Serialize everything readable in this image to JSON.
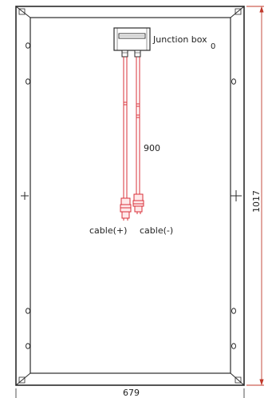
{
  "diagram": {
    "junction_box_label": "Junction box",
    "junction_box_dim": "0",
    "cable_length": "900",
    "cable_positive": "cable(+)",
    "cable_negative": "cable(-)",
    "width_dim": "679",
    "height_dim": "1017"
  },
  "colors": {
    "frame": "#2b2b2b",
    "cable": "#d9303a",
    "dimension": "#c0392b"
  }
}
